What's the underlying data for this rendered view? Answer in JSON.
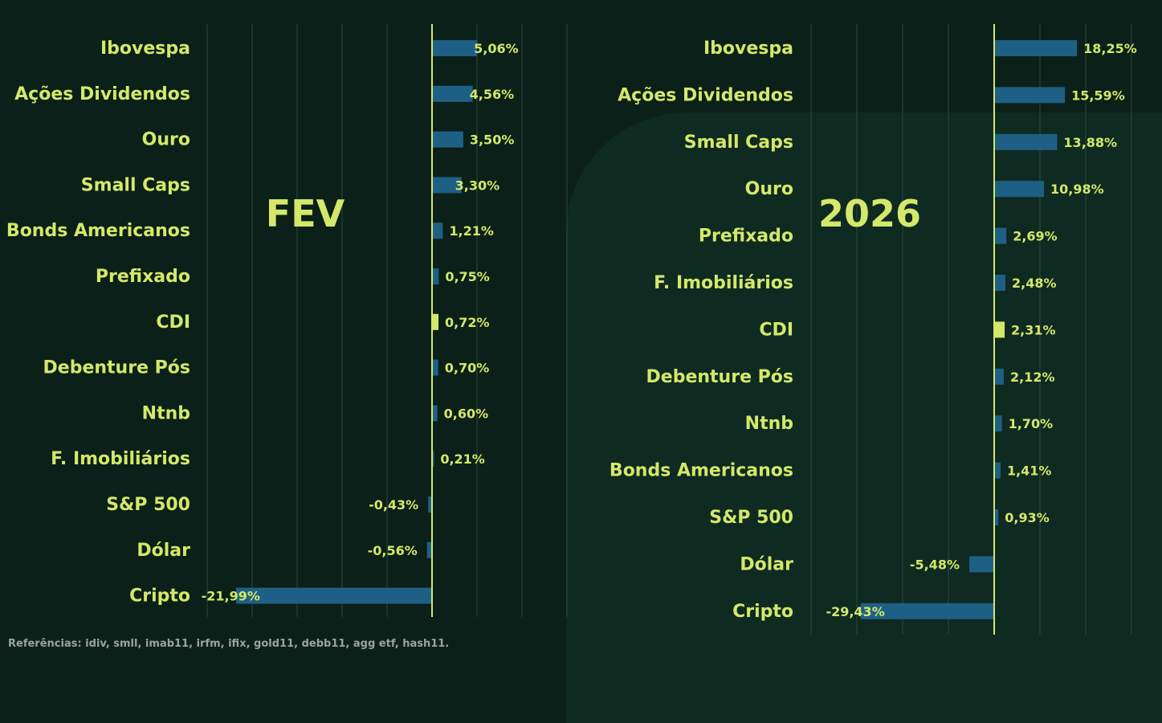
{
  "chart_data": [
    {
      "type": "bar",
      "orientation": "horizontal",
      "title": "FEV",
      "categories": [
        "Ibovespa",
        "Ações Dividendos",
        "Ouro",
        "Small Caps",
        "Bonds Americanos",
        "Prefixado",
        "CDI",
        "Debenture Pós",
        "Ntnb",
        "F. Imobiliários",
        "S&P 500",
        "Dólar",
        "Cripto"
      ],
      "values": [
        5.06,
        4.56,
        3.5,
        3.3,
        1.21,
        0.75,
        0.72,
        0.7,
        0.6,
        0.21,
        -0.43,
        -0.56,
        -21.99
      ],
      "value_labels": [
        "5,06%",
        "4,56%",
        "3,50%",
        "3,30%",
        "1,21%",
        "0,75%",
        "0,72%",
        "0,70%",
        "0,60%",
        "0,21%",
        "-0,43%",
        "-0,56%",
        "-21,99%"
      ],
      "highlight_category": "CDI",
      "xlim": [
        -25,
        5.06
      ],
      "grid": true
    },
    {
      "type": "bar",
      "orientation": "horizontal",
      "title": "2026",
      "categories": [
        "Ibovespa",
        "Ações Dividendos",
        "Small Caps",
        "Ouro",
        "Prefixado",
        "F. Imobiliários",
        "CDI",
        "Debenture Pós",
        "Ntnb",
        "Bonds Americanos",
        "S&P 500",
        "Dólar",
        "Cripto"
      ],
      "values": [
        18.25,
        15.59,
        13.88,
        10.98,
        2.69,
        2.48,
        2.31,
        2.12,
        1.7,
        1.41,
        0.93,
        -5.48,
        -29.43
      ],
      "value_labels": [
        "18,25%",
        "15,59%",
        "13,88%",
        "10,98%",
        "2,69%",
        "2,48%",
        "2,31%",
        "2,12%",
        "1,70%",
        "1,41%",
        "0,93%",
        "-5,48%",
        "-29,43%"
      ],
      "highlight_category": "CDI",
      "xlim": [
        -40,
        18.25
      ],
      "grid": true
    }
  ],
  "colors": {
    "bar": "#1e6085",
    "highlight": "#d4e86a",
    "text": "#d4e86a",
    "grid": "#2e4a3e",
    "zero_line": "#d4e86a",
    "background": "#0b2018"
  },
  "footnote": "Referências: idiv, smll, imab11, irfm, ifix, gold11, debb11, agg etf, hash11."
}
